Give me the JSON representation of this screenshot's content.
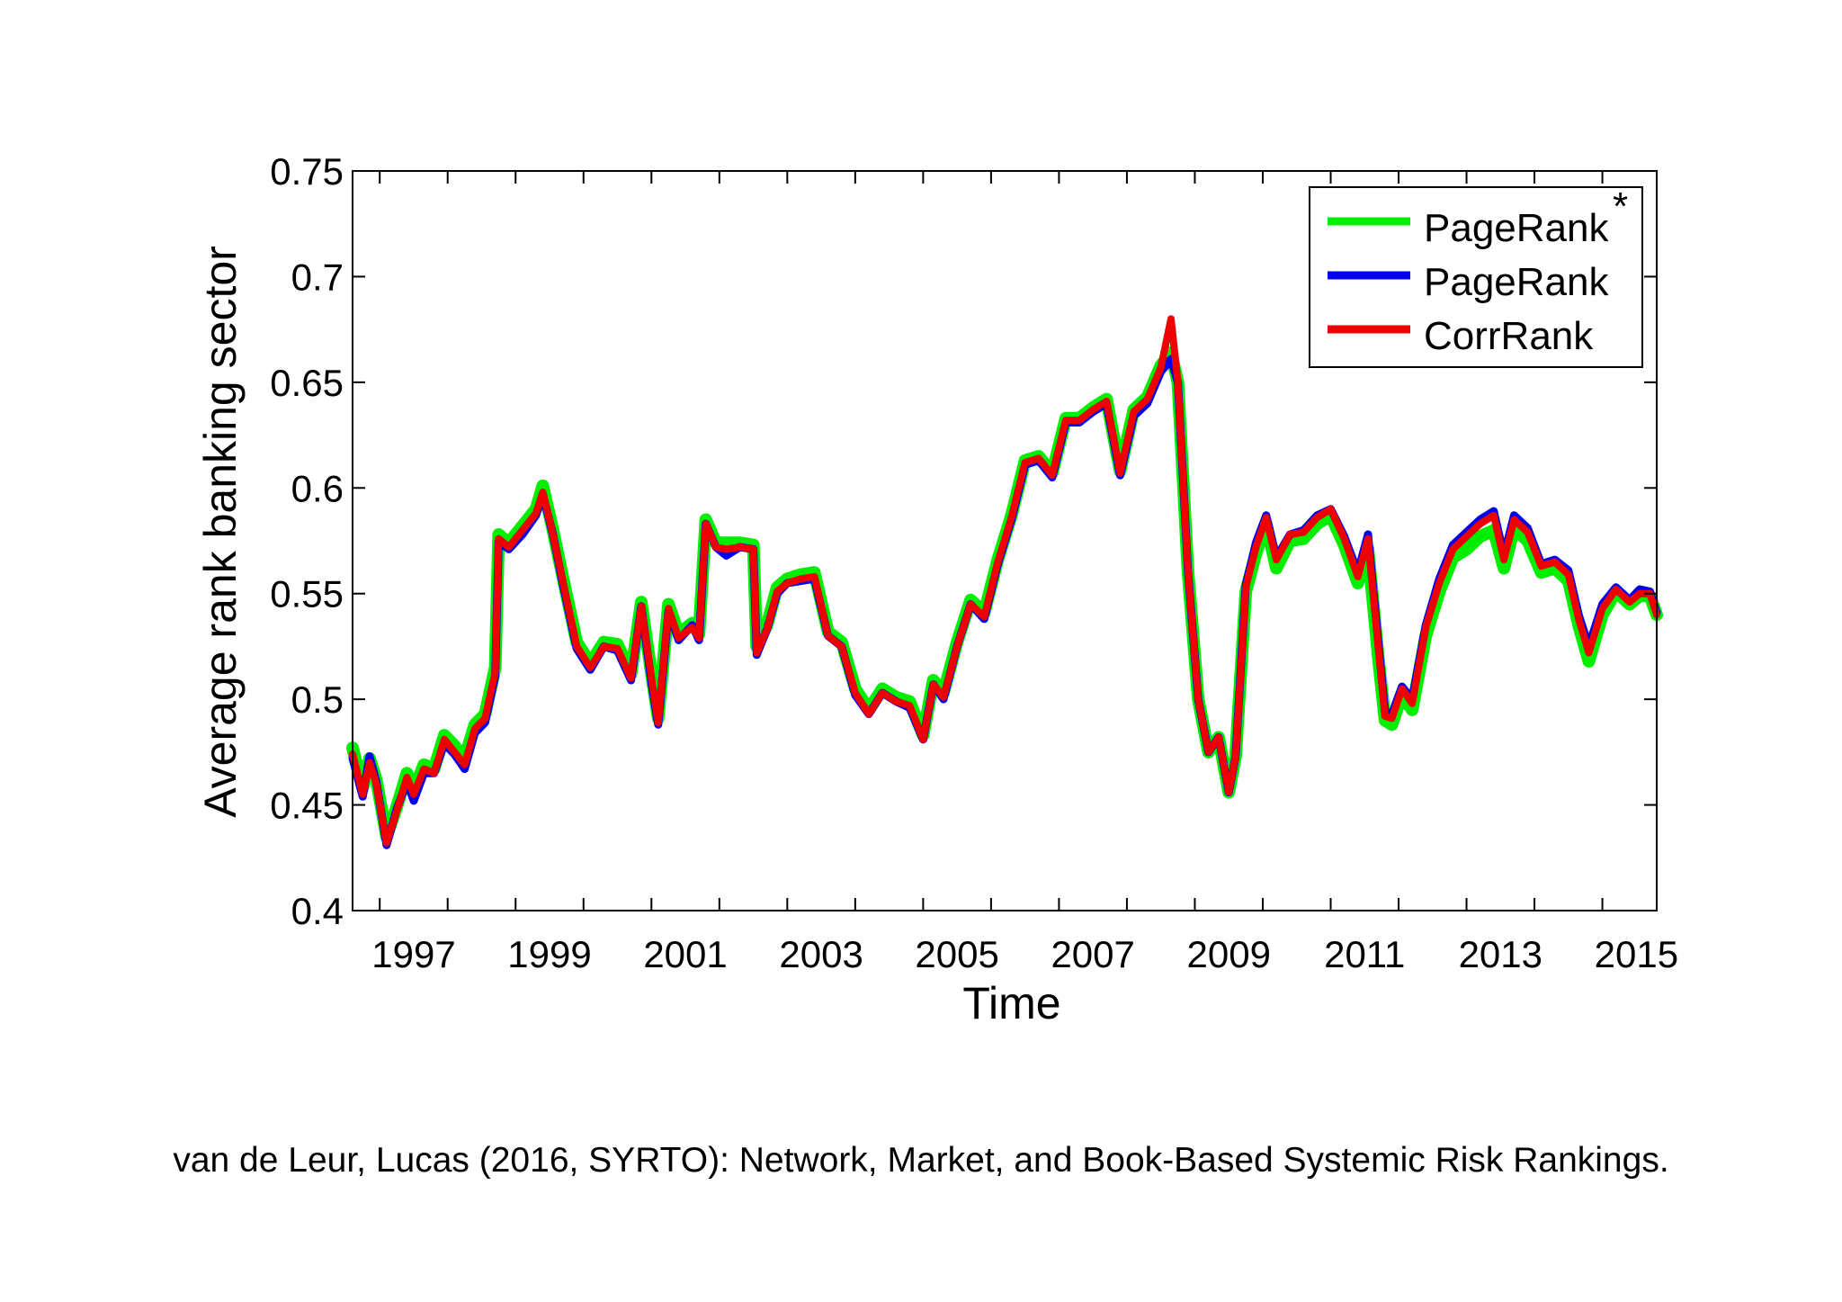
{
  "chart_data": {
    "type": "line",
    "title": "",
    "xlabel": "Time",
    "ylabel": "Average rank banking sector",
    "xlim": [
      1996.6,
      2015.8
    ],
    "ylim": [
      0.4,
      0.75
    ],
    "x_ticks": [
      "1997",
      "1999",
      "2001",
      "2003",
      "2005",
      "2007",
      "2009",
      "2011",
      "2013",
      "2015"
    ],
    "y_ticks": [
      "0.4",
      "0.45",
      "0.5",
      "0.55",
      "0.6",
      "0.65",
      "0.7",
      "0.75"
    ],
    "grid": false,
    "legend_position": "top-right",
    "series": [
      {
        "name": "PageRank",
        "superscript": "*",
        "color": "#00ee00",
        "x": [
          1996.6,
          1996.75,
          1996.85,
          1996.95,
          1997.1,
          1997.25,
          1997.4,
          1997.5,
          1997.65,
          1997.8,
          1997.95,
          1998.1,
          1998.25,
          1998.4,
          1998.55,
          1998.7,
          1998.75,
          1998.9,
          1999.1,
          1999.3,
          1999.4,
          1999.55,
          1999.7,
          1999.9,
          2000.1,
          2000.3,
          2000.5,
          2000.7,
          2000.85,
          2001.0,
          2001.1,
          2001.25,
          2001.4,
          2001.6,
          2001.7,
          2001.8,
          2001.95,
          2002.1,
          2002.3,
          2002.5,
          2002.55,
          2002.7,
          2002.85,
          2003.0,
          2003.2,
          2003.4,
          2003.6,
          2003.8,
          2004.0,
          2004.2,
          2004.4,
          2004.6,
          2004.8,
          2005.0,
          2005.15,
          2005.3,
          2005.5,
          2005.7,
          2005.9,
          2006.1,
          2006.3,
          2006.5,
          2006.7,
          2006.9,
          2007.1,
          2007.3,
          2007.5,
          2007.7,
          2007.9,
          2008.1,
          2008.3,
          2008.5,
          2008.65,
          2008.75,
          2008.9,
          2009.05,
          2009.2,
          2009.35,
          2009.5,
          2009.6,
          2009.75,
          2009.9,
          2010.05,
          2010.2,
          2010.4,
          2010.6,
          2010.8,
          2011.0,
          2011.2,
          2011.4,
          2011.55,
          2011.7,
          2011.8,
          2011.9,
          2012.05,
          2012.2,
          2012.4,
          2012.6,
          2012.8,
          2013.0,
          2013.2,
          2013.4,
          2013.55,
          2013.7,
          2013.9,
          2014.1,
          2014.3,
          2014.5,
          2014.65,
          2014.8,
          2015.0,
          2015.2,
          2015.4,
          2015.55,
          2015.7,
          2015.8
        ],
        "y": [
          0.477,
          0.458,
          0.472,
          0.462,
          0.435,
          0.449,
          0.465,
          0.457,
          0.469,
          0.467,
          0.483,
          0.478,
          0.472,
          0.488,
          0.493,
          0.515,
          0.578,
          0.574,
          0.582,
          0.59,
          0.601,
          0.58,
          0.557,
          0.527,
          0.517,
          0.527,
          0.526,
          0.512,
          0.546,
          0.512,
          0.491,
          0.545,
          0.531,
          0.536,
          0.531,
          0.585,
          0.574,
          0.574,
          0.574,
          0.573,
          0.525,
          0.535,
          0.553,
          0.557,
          0.559,
          0.56,
          0.532,
          0.527,
          0.505,
          0.495,
          0.505,
          0.501,
          0.499,
          0.483,
          0.509,
          0.503,
          0.527,
          0.547,
          0.541,
          0.566,
          0.587,
          0.613,
          0.615,
          0.607,
          0.633,
          0.633,
          0.638,
          0.642,
          0.608,
          0.637,
          0.643,
          0.658,
          0.664,
          0.65,
          0.56,
          0.5,
          0.475,
          0.482,
          0.456,
          0.473,
          0.551,
          0.569,
          0.583,
          0.562,
          0.575,
          0.576,
          0.583,
          0.587,
          0.573,
          0.555,
          0.571,
          0.52,
          0.49,
          0.488,
          0.502,
          0.495,
          0.53,
          0.551,
          0.567,
          0.571,
          0.577,
          0.58,
          0.562,
          0.581,
          0.575,
          0.56,
          0.562,
          0.556,
          0.535,
          0.518,
          0.54,
          0.551,
          0.545,
          0.549,
          0.549,
          0.54
        ]
      },
      {
        "name": "PageRank",
        "color": "#0000ee",
        "x": [
          1996.6,
          1996.75,
          1996.85,
          1996.95,
          1997.1,
          1997.25,
          1997.4,
          1997.5,
          1997.65,
          1997.8,
          1997.95,
          1998.1,
          1998.25,
          1998.4,
          1998.55,
          1998.7,
          1998.75,
          1998.9,
          1999.1,
          1999.3,
          1999.4,
          1999.55,
          1999.7,
          1999.9,
          2000.1,
          2000.3,
          2000.5,
          2000.7,
          2000.85,
          2001.0,
          2001.1,
          2001.25,
          2001.4,
          2001.6,
          2001.7,
          2001.8,
          2001.95,
          2002.1,
          2002.3,
          2002.5,
          2002.55,
          2002.7,
          2002.85,
          2003.0,
          2003.2,
          2003.4,
          2003.6,
          2003.8,
          2004.0,
          2004.2,
          2004.4,
          2004.6,
          2004.8,
          2005.0,
          2005.15,
          2005.3,
          2005.5,
          2005.7,
          2005.9,
          2006.1,
          2006.3,
          2006.5,
          2006.7,
          2006.9,
          2007.1,
          2007.3,
          2007.5,
          2007.7,
          2007.9,
          2008.1,
          2008.3,
          2008.5,
          2008.65,
          2008.75,
          2008.9,
          2009.05,
          2009.2,
          2009.35,
          2009.5,
          2009.6,
          2009.75,
          2009.9,
          2010.05,
          2010.2,
          2010.4,
          2010.6,
          2010.8,
          2011.0,
          2011.2,
          2011.4,
          2011.55,
          2011.7,
          2011.8,
          2011.9,
          2012.05,
          2012.2,
          2012.4,
          2012.6,
          2012.8,
          2013.0,
          2013.2,
          2013.4,
          2013.55,
          2013.7,
          2013.9,
          2014.1,
          2014.3,
          2014.5,
          2014.65,
          2014.8,
          2015.0,
          2015.2,
          2015.4,
          2015.55,
          2015.7,
          2015.8
        ],
        "y": [
          0.472,
          0.454,
          0.473,
          0.461,
          0.431,
          0.448,
          0.461,
          0.452,
          0.465,
          0.465,
          0.479,
          0.474,
          0.467,
          0.484,
          0.489,
          0.511,
          0.575,
          0.571,
          0.578,
          0.587,
          0.597,
          0.578,
          0.554,
          0.524,
          0.514,
          0.525,
          0.523,
          0.509,
          0.544,
          0.508,
          0.488,
          0.542,
          0.528,
          0.535,
          0.528,
          0.583,
          0.572,
          0.568,
          0.572,
          0.571,
          0.521,
          0.533,
          0.55,
          0.555,
          0.556,
          0.557,
          0.53,
          0.525,
          0.502,
          0.493,
          0.503,
          0.499,
          0.496,
          0.481,
          0.507,
          0.5,
          0.525,
          0.545,
          0.538,
          0.564,
          0.585,
          0.611,
          0.613,
          0.605,
          0.631,
          0.631,
          0.636,
          0.64,
          0.606,
          0.634,
          0.64,
          0.655,
          0.661,
          0.65,
          0.56,
          0.5,
          0.475,
          0.482,
          0.456,
          0.473,
          0.554,
          0.574,
          0.587,
          0.567,
          0.578,
          0.58,
          0.587,
          0.59,
          0.577,
          0.56,
          0.578,
          0.527,
          0.494,
          0.493,
          0.506,
          0.5,
          0.535,
          0.557,
          0.573,
          0.579,
          0.585,
          0.589,
          0.568,
          0.587,
          0.581,
          0.564,
          0.566,
          0.561,
          0.54,
          0.525,
          0.545,
          0.553,
          0.547,
          0.552,
          0.551,
          0.541
        ]
      },
      {
        "name": "CorrRank",
        "color": "#ee0000",
        "x": [
          1996.6,
          1996.75,
          1996.85,
          1996.95,
          1997.1,
          1997.25,
          1997.4,
          1997.5,
          1997.65,
          1997.8,
          1997.95,
          1998.1,
          1998.25,
          1998.4,
          1998.55,
          1998.7,
          1998.75,
          1998.9,
          1999.1,
          1999.3,
          1999.4,
          1999.55,
          1999.7,
          1999.9,
          2000.1,
          2000.3,
          2000.5,
          2000.7,
          2000.85,
          2001.0,
          2001.1,
          2001.25,
          2001.4,
          2001.6,
          2001.7,
          2001.8,
          2001.95,
          2002.1,
          2002.3,
          2002.5,
          2002.55,
          2002.7,
          2002.85,
          2003.0,
          2003.2,
          2003.4,
          2003.6,
          2003.8,
          2004.0,
          2004.2,
          2004.4,
          2004.6,
          2004.8,
          2005.0,
          2005.15,
          2005.3,
          2005.5,
          2005.7,
          2005.9,
          2006.1,
          2006.3,
          2006.5,
          2006.7,
          2006.9,
          2007.1,
          2007.3,
          2007.5,
          2007.7,
          2007.9,
          2008.1,
          2008.3,
          2008.5,
          2008.65,
          2008.75,
          2008.9,
          2009.05,
          2009.2,
          2009.35,
          2009.5,
          2009.6,
          2009.75,
          2009.9,
          2010.05,
          2010.2,
          2010.4,
          2010.6,
          2010.8,
          2011.0,
          2011.2,
          2011.4,
          2011.55,
          2011.7,
          2011.8,
          2011.9,
          2012.05,
          2012.2,
          2012.4,
          2012.6,
          2012.8,
          2013.0,
          2013.2,
          2013.4,
          2013.55,
          2013.7,
          2013.9,
          2014.1,
          2014.3,
          2014.5,
          2014.65,
          2014.8,
          2015.0,
          2015.2,
          2015.4,
          2015.55,
          2015.7,
          2015.8
        ],
        "y": [
          0.474,
          0.455,
          0.47,
          0.46,
          0.432,
          0.447,
          0.463,
          0.455,
          0.467,
          0.465,
          0.481,
          0.475,
          0.469,
          0.486,
          0.491,
          0.513,
          0.576,
          0.572,
          0.58,
          0.588,
          0.598,
          0.578,
          0.555,
          0.525,
          0.515,
          0.525,
          0.524,
          0.51,
          0.544,
          0.51,
          0.489,
          0.543,
          0.529,
          0.534,
          0.529,
          0.583,
          0.572,
          0.571,
          0.572,
          0.571,
          0.522,
          0.533,
          0.551,
          0.555,
          0.557,
          0.558,
          0.53,
          0.525,
          0.503,
          0.493,
          0.503,
          0.499,
          0.497,
          0.481,
          0.507,
          0.501,
          0.525,
          0.545,
          0.539,
          0.565,
          0.586,
          0.612,
          0.614,
          0.606,
          0.632,
          0.632,
          0.637,
          0.641,
          0.607,
          0.636,
          0.642,
          0.657,
          0.68,
          0.65,
          0.56,
          0.5,
          0.475,
          0.482,
          0.456,
          0.473,
          0.553,
          0.572,
          0.586,
          0.566,
          0.578,
          0.579,
          0.586,
          0.59,
          0.576,
          0.558,
          0.576,
          0.525,
          0.492,
          0.491,
          0.505,
          0.498,
          0.534,
          0.555,
          0.571,
          0.577,
          0.583,
          0.587,
          0.566,
          0.585,
          0.579,
          0.563,
          0.565,
          0.559,
          0.538,
          0.522,
          0.543,
          0.552,
          0.546,
          0.55,
          0.55,
          0.54
        ]
      }
    ]
  },
  "caption": "van de Leur, Lucas (2016, SYRTO): Network, Market, and Book-Based Systemic Risk Rankings."
}
